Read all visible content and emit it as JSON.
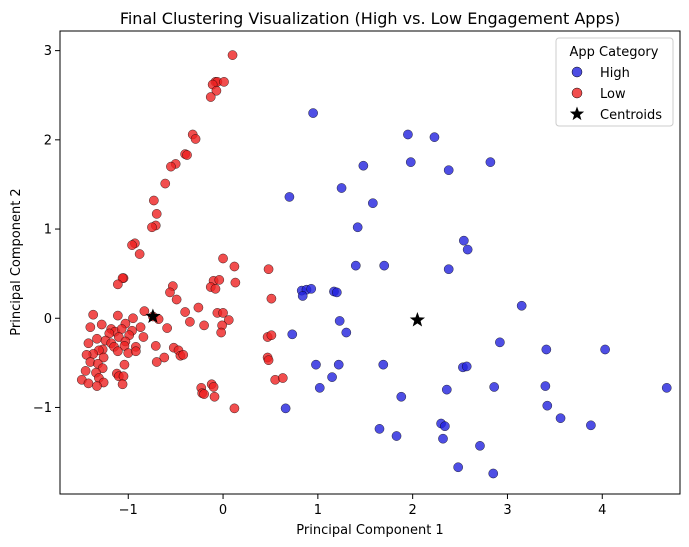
{
  "chart_data": {
    "type": "scatter",
    "title": "Final Clustering Visualization (High vs. Low Engagement Apps)",
    "xlabel": "Principal Component 1",
    "ylabel": "Principal Component 2",
    "xlim": [
      -1.72,
      4.82
    ],
    "ylim": [
      -1.97,
      3.22
    ],
    "x_ticks": [
      -1,
      0,
      1,
      2,
      3,
      4
    ],
    "y_ticks": [
      -1,
      0,
      1,
      2,
      3
    ],
    "x_tick_labels": [
      "−1",
      "0",
      "1",
      "2",
      "3",
      "4"
    ],
    "y_tick_labels": [
      "−1",
      "0",
      "1",
      "2",
      "3"
    ],
    "grid": false,
    "legend": {
      "title": "App Category",
      "placement": "top-right",
      "entries": [
        "High",
        "Low",
        "Centroids"
      ]
    },
    "colors": {
      "High": "#2222dd",
      "Low": "#ee2222",
      "Centroids": "#000000"
    },
    "series": [
      {
        "name": "High",
        "marker": "circle",
        "points": [
          [
            0.95,
            2.3
          ],
          [
            1.95,
            2.06
          ],
          [
            2.23,
            2.03
          ],
          [
            1.25,
            1.46
          ],
          [
            1.48,
            1.71
          ],
          [
            1.98,
            1.75
          ],
          [
            2.38,
            1.66
          ],
          [
            2.82,
            1.75
          ],
          [
            0.7,
            1.36
          ],
          [
            1.58,
            1.29
          ],
          [
            1.42,
            1.02
          ],
          [
            2.54,
            0.87
          ],
          [
            2.58,
            0.77
          ],
          [
            1.4,
            0.59
          ],
          [
            1.7,
            0.59
          ],
          [
            2.38,
            0.55
          ],
          [
            0.83,
            0.31
          ],
          [
            0.88,
            0.32
          ],
          [
            0.93,
            0.33
          ],
          [
            1.17,
            0.3
          ],
          [
            1.2,
            0.29
          ],
          [
            0.84,
            0.25
          ],
          [
            3.15,
            0.14
          ],
          [
            1.23,
            -0.03
          ],
          [
            1.3,
            -0.16
          ],
          [
            0.73,
            -0.18
          ],
          [
            2.92,
            -0.27
          ],
          [
            3.41,
            -0.35
          ],
          [
            4.03,
            -0.35
          ],
          [
            0.98,
            -0.52
          ],
          [
            1.22,
            -0.52
          ],
          [
            1.69,
            -0.52
          ],
          [
            2.53,
            -0.55
          ],
          [
            2.57,
            -0.54
          ],
          [
            1.02,
            -0.78
          ],
          [
            1.15,
            -0.66
          ],
          [
            2.36,
            -0.8
          ],
          [
            2.86,
            -0.77
          ],
          [
            3.4,
            -0.76
          ],
          [
            4.68,
            -0.78
          ],
          [
            1.88,
            -0.88
          ],
          [
            0.66,
            -1.01
          ],
          [
            3.42,
            -0.98
          ],
          [
            3.56,
            -1.12
          ],
          [
            3.88,
            -1.2
          ],
          [
            2.3,
            -1.18
          ],
          [
            2.34,
            -1.21
          ],
          [
            1.65,
            -1.24
          ],
          [
            1.83,
            -1.32
          ],
          [
            2.32,
            -1.35
          ],
          [
            2.71,
            -1.43
          ],
          [
            2.48,
            -1.67
          ],
          [
            2.85,
            -1.74
          ]
        ]
      },
      {
        "name": "Low",
        "marker": "circle",
        "points": [
          [
            0.1,
            2.95
          ],
          [
            -0.08,
            2.65
          ],
          [
            -0.06,
            2.65
          ],
          [
            0.01,
            2.65
          ],
          [
            -0.11,
            2.62
          ],
          [
            -0.07,
            2.55
          ],
          [
            -0.13,
            2.48
          ],
          [
            -0.32,
            2.06
          ],
          [
            -0.29,
            2.01
          ],
          [
            -0.4,
            1.84
          ],
          [
            -0.38,
            1.83
          ],
          [
            -0.5,
            1.73
          ],
          [
            -0.55,
            1.7
          ],
          [
            -0.61,
            1.51
          ],
          [
            -0.73,
            1.32
          ],
          [
            -0.7,
            1.17
          ],
          [
            -0.71,
            1.04
          ],
          [
            -0.75,
            1.02
          ],
          [
            -0.93,
            0.84
          ],
          [
            -0.96,
            0.82
          ],
          [
            -0.88,
            0.72
          ],
          [
            0.0,
            0.67
          ],
          [
            0.12,
            0.58
          ],
          [
            0.48,
            0.55
          ],
          [
            -1.05,
            0.45
          ],
          [
            -1.06,
            0.45
          ],
          [
            -0.1,
            0.42
          ],
          [
            -0.04,
            0.43
          ],
          [
            -1.11,
            0.38
          ],
          [
            0.13,
            0.4
          ],
          [
            -0.53,
            0.36
          ],
          [
            -0.13,
            0.35
          ],
          [
            -0.08,
            0.33
          ],
          [
            -0.56,
            0.29
          ],
          [
            -0.49,
            0.21
          ],
          [
            -0.26,
            0.12
          ],
          [
            0.51,
            0.22
          ],
          [
            -0.83,
            0.08
          ],
          [
            -1.37,
            0.04
          ],
          [
            -1.11,
            0.03
          ],
          [
            -0.74,
            0.02
          ],
          [
            -0.4,
            0.07
          ],
          [
            -0.06,
            0.06
          ],
          [
            0.0,
            0.06
          ],
          [
            -0.95,
            0.0
          ],
          [
            -0.68,
            -0.01
          ],
          [
            -0.35,
            -0.04
          ],
          [
            0.06,
            -0.02
          ],
          [
            -1.03,
            -0.06
          ],
          [
            -1.28,
            -0.07
          ],
          [
            -0.87,
            -0.1
          ],
          [
            -0.2,
            -0.08
          ],
          [
            -0.01,
            -0.08
          ],
          [
            -1.4,
            -0.1
          ],
          [
            -1.18,
            -0.12
          ],
          [
            -1.14,
            -0.15
          ],
          [
            -1.07,
            -0.12
          ],
          [
            -0.96,
            -0.14
          ],
          [
            -0.59,
            -0.11
          ],
          [
            -0.02,
            -0.16
          ],
          [
            0.47,
            -0.21
          ],
          [
            0.51,
            -0.19
          ],
          [
            -1.2,
            -0.17
          ],
          [
            -1.1,
            -0.21
          ],
          [
            -0.99,
            -0.19
          ],
          [
            -1.33,
            -0.23
          ],
          [
            -0.84,
            -0.21
          ],
          [
            -1.24,
            -0.25
          ],
          [
            -1.18,
            -0.28
          ],
          [
            -1.03,
            -0.26
          ],
          [
            -1.42,
            -0.28
          ],
          [
            -0.71,
            -0.31
          ],
          [
            -0.52,
            -0.33
          ],
          [
            -0.47,
            -0.36
          ],
          [
            -1.15,
            -0.32
          ],
          [
            -1.04,
            -0.31
          ],
          [
            -0.92,
            -0.32
          ],
          [
            -1.27,
            -0.35
          ],
          [
            -1.31,
            -0.36
          ],
          [
            -1.11,
            -0.37
          ],
          [
            -1.0,
            -0.39
          ],
          [
            -1.37,
            -0.4
          ],
          [
            -1.44,
            -0.41
          ],
          [
            -1.26,
            -0.44
          ],
          [
            -0.92,
            -0.37
          ],
          [
            -0.45,
            -0.42
          ],
          [
            -0.42,
            -0.41
          ],
          [
            -0.62,
            -0.44
          ],
          [
            0.47,
            -0.44
          ],
          [
            0.48,
            -0.47
          ],
          [
            -1.4,
            -0.49
          ],
          [
            -1.32,
            -0.51
          ],
          [
            -1.04,
            -0.52
          ],
          [
            -0.7,
            -0.49
          ],
          [
            -1.27,
            -0.56
          ],
          [
            -1.45,
            -0.59
          ],
          [
            -1.34,
            -0.61
          ],
          [
            -1.12,
            -0.62
          ],
          [
            -1.1,
            -0.65
          ],
          [
            -1.05,
            -0.65
          ],
          [
            -1.49,
            -0.69
          ],
          [
            -1.31,
            -0.67
          ],
          [
            0.55,
            -0.69
          ],
          [
            0.63,
            -0.67
          ],
          [
            -1.42,
            -0.73
          ],
          [
            -1.26,
            -0.72
          ],
          [
            -1.06,
            -0.74
          ],
          [
            -0.23,
            -0.78
          ],
          [
            -0.12,
            -0.74
          ],
          [
            -0.1,
            -0.77
          ],
          [
            -1.33,
            -0.76
          ],
          [
            -0.22,
            -0.84
          ],
          [
            -0.2,
            -0.85
          ],
          [
            -0.09,
            -0.88
          ],
          [
            0.12,
            -1.01
          ]
        ]
      },
      {
        "name": "Centroids",
        "marker": "star",
        "points": [
          [
            -0.74,
            0.02
          ],
          [
            2.05,
            -0.02
          ]
        ]
      }
    ]
  }
}
